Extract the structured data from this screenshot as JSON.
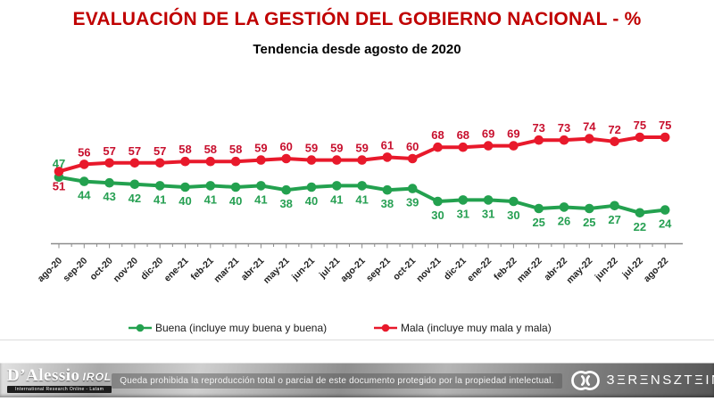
{
  "title": "EVALUACIÓN DE LA GESTIÓN DEL GOBIERNO NACIONAL - %",
  "subtitle": "Tendencia desde agosto de 2020",
  "colors": {
    "title": "#C00000",
    "buena_line": "#23A14F",
    "mala_line": "#E8192B",
    "buena_label": "#27A053",
    "mala_label": "#C8102E",
    "axis": "#8C8C8C",
    "tick_label": "#222222"
  },
  "chart_data": {
    "type": "line",
    "title": "EVALUACIÓN DE LA GESTIÓN DEL GOBIERNO NACIONAL - %",
    "subtitle": "Tendencia desde agosto de 2020",
    "xlabel": "",
    "ylabel": "",
    "ylim": [
      0,
      100
    ],
    "grid": false,
    "legend_position": "bottom",
    "data_labels": true,
    "categories": [
      "ago-20",
      "sep-20",
      "oct-20",
      "nov-20",
      "dic-20",
      "ene-21",
      "feb-21",
      "mar-21",
      "abr-21",
      "may-21",
      "jun-21",
      "jul-21",
      "ago-21",
      "sep-21",
      "oct-21",
      "nov-21",
      "dic-21",
      "ene-22",
      "feb-22",
      "mar-22",
      "abr-22",
      "may-22",
      "jun-22",
      "jul-22",
      "ago-22"
    ],
    "series": [
      {
        "name": "Buena (incluye muy buena y buena)",
        "color": "#23A14F",
        "label_color": "#27A053",
        "values": [
          47,
          44,
          43,
          42,
          41,
          40,
          41,
          40,
          41,
          38,
          40,
          41,
          41,
          38,
          39,
          30,
          31,
          31,
          30,
          25,
          26,
          25,
          27,
          22,
          24
        ]
      },
      {
        "name": "Mala (incluye muy mala y mala)",
        "color": "#E8192B",
        "label_color": "#C8102E",
        "values": [
          51,
          56,
          57,
          57,
          57,
          58,
          58,
          58,
          59,
          60,
          59,
          59,
          59,
          61,
          60,
          68,
          68,
          69,
          69,
          73,
          73,
          74,
          72,
          75,
          75
        ]
      }
    ]
  },
  "legend": {
    "buena": "Buena (incluye muy buena y buena)",
    "mala": "Mala (incluye muy mala y mala)"
  },
  "footer": {
    "dalessio_name": "D’Alessio",
    "dalessio_irol": "IROL",
    "dalessio_tagline": "International Research Online - Latam",
    "disclaimer": "Queda prohibida la reproducción total o parcial de este documento protegido por la propiedad intelectual.",
    "berensztein": "ЗΞRΞNSZTΞIN"
  }
}
